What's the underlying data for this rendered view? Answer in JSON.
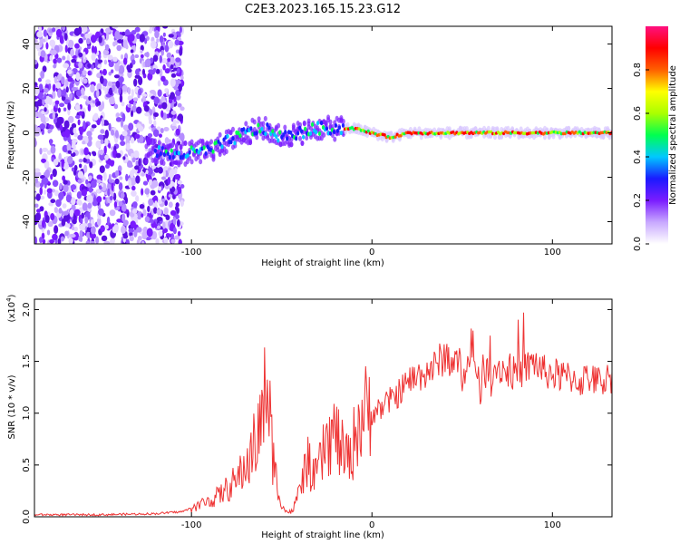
{
  "title": "C2E3.2023.165.15.23.G12",
  "chart_data": [
    {
      "type": "heatmap",
      "xlabel": "Height of straight line (km)",
      "ylabel": "Frequency (Hz)",
      "xlim": [
        -187,
        133
      ],
      "ylim": [
        -50,
        48
      ],
      "xticks": [
        -100,
        0,
        100
      ],
      "yticks": [
        -40,
        -20,
        0,
        20,
        40
      ],
      "colorbar": {
        "label": "Normalized spectral amplitude",
        "range": [
          0,
          1
        ],
        "ticks": [
          0.0,
          0.2,
          0.4,
          0.6,
          0.8
        ],
        "colormap": [
          "#ffffff",
          "#c8a8ff",
          "#7a1cff",
          "#1a1aff",
          "#00c8ff",
          "#00ff50",
          "#aaff00",
          "#ffff00",
          "#ff6000",
          "#ff0000",
          "#ff1080"
        ]
      },
      "ridge": {
        "x": [
          -120,
          -110,
          -100,
          -90,
          -80,
          -70,
          -60,
          -50,
          -40,
          -30,
          -20,
          -10,
          0,
          10,
          20,
          40,
          60,
          80,
          100,
          120,
          133
        ],
        "y": [
          -8,
          -10,
          -9,
          -8,
          -4,
          0,
          2,
          -2,
          0,
          2,
          2,
          2,
          0,
          -2,
          0,
          0,
          0,
          0,
          0,
          0,
          0
        ]
      }
    },
    {
      "type": "line",
      "xlabel": "Height of straight line (km)",
      "ylabel": "SNR (10 * v/v)",
      "y_multiplier": "(x10^4)",
      "xlim": [
        -187,
        133
      ],
      "ylim": [
        0,
        2.1
      ],
      "xticks": [
        -100,
        0,
        100
      ],
      "yticks": [
        0.0,
        0.5,
        1.0,
        1.5,
        2.0
      ],
      "line_color": "#ee3333",
      "series": [
        {
          "x": [
            -187,
            -150,
            -120,
            -105,
            -95,
            -85,
            -75,
            -68,
            -62,
            -58,
            -55,
            -52,
            -48,
            -44,
            -40,
            -36,
            -32,
            -28,
            -24,
            -20,
            -16,
            -12,
            -8,
            -4,
            0,
            5,
            10,
            15,
            20,
            25,
            30,
            35,
            40,
            45,
            50,
            55,
            60,
            65,
            70,
            75,
            80,
            85,
            90,
            95,
            100,
            105,
            110,
            115,
            120,
            125,
            133
          ],
          "y": [
            0.02,
            0.02,
            0.03,
            0.05,
            0.12,
            0.2,
            0.35,
            0.55,
            0.85,
            1.3,
            0.6,
            0.25,
            0.05,
            0.05,
            0.25,
            0.55,
            0.35,
            0.55,
            0.75,
            0.8,
            0.6,
            0.55,
            0.9,
            1.0,
            1.0,
            1.05,
            1.12,
            1.2,
            1.3,
            1.35,
            1.4,
            1.45,
            1.55,
            1.5,
            1.45,
            1.45,
            1.4,
            1.4,
            1.45,
            1.4,
            1.38,
            1.42,
            1.5,
            1.4,
            1.38,
            1.35,
            1.35,
            1.3,
            1.35,
            1.3,
            1.35
          ]
        }
      ]
    }
  ]
}
